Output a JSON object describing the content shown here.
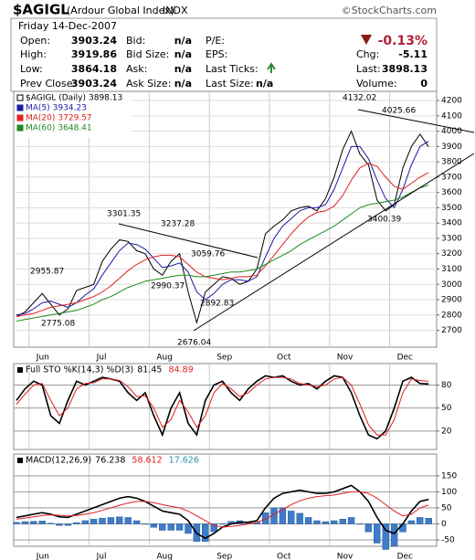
{
  "header": {
    "symbol": "$AGIGL",
    "name": "(Ardour Global Index)",
    "exchange": "INDX",
    "credit": "©StockCharts.com",
    "date": "Friday  14-Dec-2007",
    "quote": [
      [
        {
          "label": "Open:",
          "value": "3903.24"
        },
        {
          "label": "High:",
          "value": "3919.86"
        },
        {
          "label": "Low:",
          "value": "3864.18"
        },
        {
          "label": "Prev Close:",
          "value": "3903.24"
        }
      ],
      [
        {
          "label": "Bid:",
          "value": "n/a"
        },
        {
          "label": "Bid Size:",
          "value": "n/a"
        },
        {
          "label": "Ask:",
          "value": "n/a"
        },
        {
          "label": "Ask Size:",
          "value": "n/a"
        }
      ],
      [
        {
          "label": "P/E:"
        },
        {
          "label": "EPS:"
        },
        {
          "label": "Last Ticks:"
        },
        {
          "label": "Last Size:",
          "value": "n/a"
        }
      ],
      [
        {
          "value": "-0.13%"
        },
        {
          "label": "Chg:",
          "value": "-5.11"
        },
        {
          "label": "Last:",
          "value": "3898.13"
        },
        {
          "label": "Volume:",
          "value": "0"
        }
      ]
    ]
  },
  "chart_data": [
    {
      "type": "line",
      "categories": [
        null,
        null,
        "Jun",
        null,
        null,
        null,
        null,
        null,
        null,
        "Jul",
        null,
        null,
        null,
        null,
        null,
        null,
        "Aug",
        null,
        null,
        null,
        null,
        null,
        null,
        "Sep",
        null,
        null,
        null,
        null,
        null,
        null,
        "Oct",
        null,
        null,
        null,
        null,
        null,
        null,
        "Nov",
        null,
        null,
        null,
        null,
        null,
        null,
        "Dec",
        null,
        null,
        null,
        null
      ],
      "series": [
        {
          "name": "$AGIGL (Daily)",
          "color": "#000000",
          "values": [
            2790,
            2820,
            2880,
            2940,
            2870,
            2800,
            2840,
            2960,
            2980,
            3000,
            3150,
            3230,
            3290,
            3280,
            3220,
            3200,
            3100,
            3060,
            3150,
            3200,
            2950,
            2750,
            2950,
            3000,
            3050,
            3040,
            3000,
            3020,
            3100,
            3330,
            3380,
            3420,
            3480,
            3500,
            3510,
            3480,
            3560,
            3700,
            3880,
            4000,
            3850,
            3780,
            3550,
            3480,
            3520,
            3760,
            3900,
            3980,
            3898.13
          ]
        },
        {
          "name": "MA(5)",
          "color": "#1a1aa6",
          "values": [
            2800,
            2810,
            2840,
            2880,
            2890,
            2870,
            2850,
            2880,
            2930,
            2970,
            3060,
            3140,
            3220,
            3270,
            3260,
            3230,
            3170,
            3110,
            3120,
            3140,
            3080,
            2950,
            2900,
            2940,
            3000,
            3030,
            3030,
            3020,
            3050,
            3180,
            3300,
            3380,
            3430,
            3480,
            3500,
            3500,
            3520,
            3620,
            3760,
            3900,
            3900,
            3820,
            3680,
            3560,
            3500,
            3620,
            3780,
            3900,
            3934.23
          ]
        },
        {
          "name": "MA(20)",
          "color": "#e02020",
          "values": [
            2790,
            2800,
            2810,
            2830,
            2850,
            2860,
            2870,
            2880,
            2900,
            2920,
            2950,
            2990,
            3040,
            3090,
            3130,
            3160,
            3180,
            3190,
            3190,
            3180,
            3130,
            3080,
            3050,
            3040,
            3030,
            3040,
            3050,
            3050,
            3060,
            3120,
            3190,
            3260,
            3330,
            3390,
            3440,
            3470,
            3480,
            3510,
            3580,
            3680,
            3760,
            3790,
            3770,
            3700,
            3640,
            3620,
            3660,
            3700,
            3729.57
          ]
        },
        {
          "name": "MA(60)",
          "color": "#1e8a1e",
          "values": [
            2760,
            2770,
            2780,
            2790,
            2800,
            2810,
            2820,
            2830,
            2850,
            2870,
            2900,
            2920,
            2950,
            2980,
            3000,
            3020,
            3030,
            3040,
            3050,
            3060,
            3060,
            3050,
            3050,
            3060,
            3070,
            3080,
            3080,
            3090,
            3100,
            3130,
            3160,
            3190,
            3220,
            3260,
            3290,
            3320,
            3350,
            3380,
            3420,
            3460,
            3500,
            3520,
            3530,
            3540,
            3550,
            3570,
            3600,
            3630,
            3648.41
          ]
        }
      ],
      "annotations": [
        "4132.02",
        "4025.66",
        "3400.39",
        "3301.35",
        "3237.28",
        "3059.76",
        "2990.37",
        "2892.83",
        "2676.04",
        "2775.08",
        "2955.87"
      ],
      "ylim": [
        2590,
        4260
      ],
      "yticks": [
        2700,
        2800,
        2900,
        3000,
        3100,
        3200,
        3300,
        3400,
        3500,
        3600,
        3700,
        3800,
        3900,
        4000,
        4100,
        4200
      ],
      "grid": true
    },
    {
      "type": "line",
      "title": "Full STO %K(14,3) %D(3)",
      "series": [
        {
          "color": "#000000",
          "values": [
            60,
            75,
            85,
            80,
            40,
            30,
            60,
            85,
            80,
            85,
            90,
            88,
            85,
            70,
            60,
            70,
            40,
            15,
            50,
            70,
            30,
            15,
            60,
            80,
            85,
            70,
            60,
            75,
            85,
            92,
            90,
            92,
            85,
            80,
            82,
            75,
            85,
            92,
            90,
            70,
            40,
            15,
            10,
            20,
            50,
            85,
            90,
            82,
            81.45
          ]
        },
        {
          "color": "#e02020",
          "values": [
            55,
            68,
            80,
            82,
            60,
            40,
            50,
            75,
            82,
            83,
            88,
            88,
            86,
            78,
            65,
            66,
            50,
            25,
            35,
            60,
            45,
            25,
            40,
            70,
            82,
            75,
            65,
            70,
            80,
            88,
            90,
            90,
            88,
            82,
            80,
            78,
            80,
            88,
            90,
            80,
            55,
            28,
            15,
            15,
            35,
            70,
            88,
            86,
            84.89
          ]
        }
      ],
      "ylim": [
        -4,
        108
      ],
      "yticks": [
        20,
        50,
        80
      ],
      "grid": true
    },
    {
      "type": "line",
      "title": "MACD(12,26,9)",
      "categories": [
        null,
        null,
        "Jun",
        null,
        null,
        null,
        null,
        null,
        null,
        "Jul",
        null,
        null,
        null,
        null,
        null,
        null,
        "Aug",
        null,
        null,
        null,
        null,
        null,
        null,
        "Sep",
        null,
        null,
        null,
        null,
        null,
        null,
        "Oct",
        null,
        null,
        null,
        null,
        null,
        null,
        "Nov",
        null,
        null,
        null,
        null,
        null,
        null,
        "Dec",
        null,
        null,
        null,
        null
      ],
      "series": [
        {
          "color": "#000000",
          "values": [
            20,
            25,
            30,
            35,
            30,
            22,
            20,
            30,
            40,
            50,
            60,
            70,
            80,
            85,
            80,
            70,
            55,
            40,
            35,
            30,
            10,
            -30,
            -45,
            -30,
            -10,
            0,
            5,
            5,
            10,
            50,
            80,
            95,
            100,
            105,
            100,
            95,
            95,
            100,
            110,
            120,
            100,
            70,
            20,
            -20,
            -30,
            0,
            40,
            70,
            76.238
          ]
        },
        {
          "color": "#e02020",
          "values": [
            15,
            18,
            22,
            26,
            28,
            27,
            25,
            26,
            30,
            35,
            42,
            50,
            58,
            65,
            70,
            70,
            66,
            60,
            55,
            50,
            40,
            25,
            10,
            -5,
            -10,
            -8,
            -5,
            0,
            5,
            15,
            30,
            45,
            60,
            72,
            80,
            85,
            88,
            90,
            95,
            100,
            100,
            95,
            80,
            60,
            40,
            25,
            30,
            50,
            58.612
          ]
        },
        {
          "type": "bar",
          "color": "#3d7cc9",
          "values": [
            5,
            7,
            8,
            9,
            2,
            -5,
            -5,
            4,
            10,
            15,
            18,
            20,
            22,
            20,
            10,
            0,
            -11,
            -20,
            -20,
            -20,
            -30,
            -55,
            -55,
            -25,
            0,
            8,
            10,
            5,
            5,
            35,
            50,
            50,
            40,
            33,
            20,
            10,
            7,
            10,
            15,
            20,
            0,
            -25,
            -60,
            -80,
            -70,
            -25,
            10,
            20,
            17.626
          ]
        }
      ],
      "ylim": [
        -70,
        218
      ],
      "yticks": [
        -50,
        0,
        50,
        100,
        150
      ],
      "grid": true
    }
  ]
}
